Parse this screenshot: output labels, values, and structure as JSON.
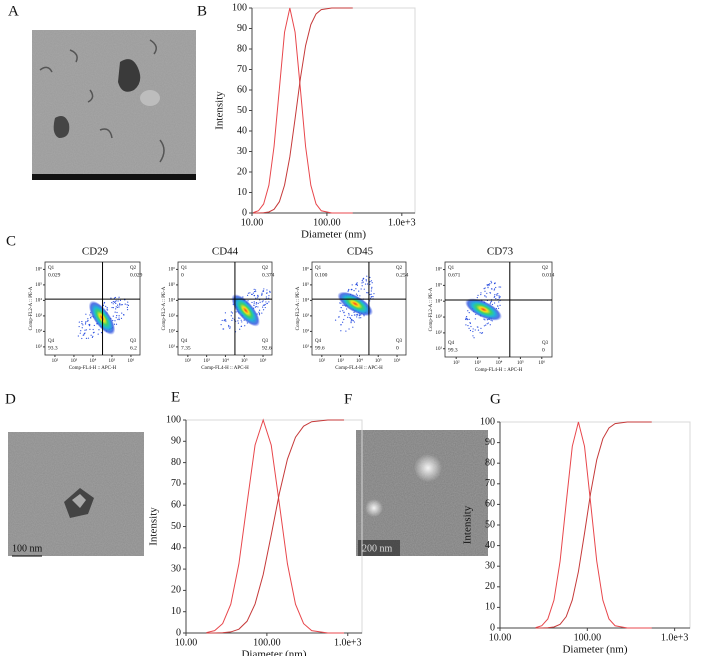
{
  "panel_labels": [
    "A",
    "B",
    "C",
    "D",
    "E",
    "F",
    "G"
  ],
  "images": {
    "D": {
      "scale_bar": "100 nm"
    },
    "F": {
      "scale_bar": "200 nm"
    }
  },
  "chart_data": [
    {
      "type": "line",
      "x_label": "Diameter (nm)",
      "y_label": "Intensity",
      "log_x": true,
      "xlim": [
        10,
        1500
      ],
      "xticks": [
        {
          "value": 10,
          "label": "10.00"
        },
        {
          "value": 100,
          "label": "100.00"
        },
        {
          "value": 1000,
          "label": "1.0e+3"
        }
      ],
      "ylim": [
        0,
        100
      ],
      "yticks": [
        0,
        10,
        20,
        30,
        40,
        50,
        60,
        70,
        80,
        90,
        100
      ],
      "x": [
        10.4,
        12.2,
        14.3,
        16.8,
        19.7,
        23.2,
        27.2,
        32.0,
        37.6,
        44.2,
        51.9,
        61.0,
        71.6,
        84.1,
        116.1,
        160.3,
        221.3
      ],
      "series": [
        {
          "color": "#e8474c",
          "values": [
            0.2,
            1.1,
            4.4,
            13.5,
            32.5,
            60.7,
            88.2,
            100,
            88.2,
            60.7,
            32.5,
            13.5,
            4.4,
            1.1,
            0,
            0,
            0
          ]
        },
        {
          "color": "#c63a3a",
          "values": [
            0,
            0,
            0.1,
            0.5,
            1.8,
            5.5,
            13.6,
            27.4,
            46.0,
            65.5,
            81.6,
            91.9,
            97.1,
            99.2,
            100,
            100,
            100
          ]
        }
      ]
    },
    {
      "type": "flow",
      "title": "CD29",
      "x_label": "Comp-FL4-H :: APC-H",
      "y_label": "Comp-FL2-A :: PE-A",
      "log_x": true,
      "log_y": true,
      "xlim": [
        30,
        3000000
      ],
      "xticks": [
        {
          "value": 100,
          "label": "10²"
        },
        {
          "value": 1000,
          "label": "10³"
        },
        {
          "value": 10000,
          "label": "10⁴"
        },
        {
          "value": 100000,
          "label": "10⁵"
        },
        {
          "value": 1000000,
          "label": "10⁶"
        }
      ],
      "ylim": [
        3,
        3000000
      ],
      "yticks": [
        {
          "value": 10,
          "label": "10¹"
        },
        {
          "value": 100,
          "label": "10²"
        },
        {
          "value": 1000,
          "label": "10³"
        },
        {
          "value": 10000,
          "label": "10⁴"
        },
        {
          "value": 100000,
          "label": "10⁵"
        },
        {
          "value": 1000000,
          "label": "10⁶"
        }
      ],
      "gate": [
        32000,
        12000
      ],
      "quadrants": [
        "Q1",
        "Q2",
        "Q3",
        "Q4"
      ],
      "values": [
        0.029,
        0.029,
        6.2,
        93.3
      ],
      "value_labels": [
        "0.029",
        "0.029",
        "6.2",
        "93.3"
      ]
    },
    {
      "type": "flow",
      "title": "CD44",
      "x_label": "Comp-FL4-H :: APC-H",
      "y_label": "Comp-FL2-A :: PE-A",
      "log_x": true,
      "log_y": true,
      "xlim": [
        30,
        3000000
      ],
      "xticks": [
        {
          "value": 100,
          "label": "10²"
        },
        {
          "value": 1000,
          "label": "10³"
        },
        {
          "value": 10000,
          "label": "10⁴"
        },
        {
          "value": 100000,
          "label": "10⁵"
        },
        {
          "value": 1000000,
          "label": "10⁶"
        }
      ],
      "ylim": [
        3,
        3000000
      ],
      "yticks": [
        {
          "value": 10,
          "label": "10¹"
        },
        {
          "value": 100,
          "label": "10²"
        },
        {
          "value": 1000,
          "label": "10³"
        },
        {
          "value": 10000,
          "label": "10⁴"
        },
        {
          "value": 100000,
          "label": "10⁵"
        },
        {
          "value": 1000000,
          "label": "10⁶"
        }
      ],
      "gate": [
        32000,
        12000
      ],
      "quadrants": [
        "Q1",
        "Q2",
        "Q3",
        "Q4"
      ],
      "values": [
        0,
        0.374,
        92.6,
        7.35
      ],
      "value_labels": [
        "0",
        "0.374",
        "92.6",
        "7.35"
      ]
    },
    {
      "type": "flow",
      "title": "CD45",
      "x_label": "Comp-FL4-H :: APC-H",
      "y_label": "Comp-FL2-A :: PE-A",
      "log_x": true,
      "log_y": true,
      "xlim": [
        30,
        3000000
      ],
      "xticks": [
        {
          "value": 100,
          "label": "10²"
        },
        {
          "value": 1000,
          "label": "10³"
        },
        {
          "value": 10000,
          "label": "10⁴"
        },
        {
          "value": 100000,
          "label": "10⁵"
        },
        {
          "value": 1000000,
          "label": "10⁶"
        }
      ],
      "ylim": [
        3,
        3000000
      ],
      "yticks": [
        {
          "value": 10,
          "label": "10¹"
        },
        {
          "value": 100,
          "label": "10²"
        },
        {
          "value": 1000,
          "label": "10³"
        },
        {
          "value": 10000,
          "label": "10⁴"
        },
        {
          "value": 100000,
          "label": "10⁵"
        },
        {
          "value": 1000000,
          "label": "10⁶"
        }
      ],
      "gate": [
        32000,
        12000
      ],
      "quadrants": [
        "Q1",
        "Q2",
        "Q3",
        "Q4"
      ],
      "values": [
        0.1,
        0.254,
        0,
        99.6
      ],
      "value_labels": [
        "0.100",
        "0.254",
        "0",
        "99.6"
      ]
    },
    {
      "type": "flow",
      "title": "CD73",
      "x_label": "Comp-FL4-H :: APC-H",
      "y_label": "Comp-FL2-A :: PE-A",
      "log_x": true,
      "log_y": true,
      "xlim": [
        30,
        3000000
      ],
      "xticks": [
        {
          "value": 100,
          "label": "10²"
        },
        {
          "value": 1000,
          "label": "10³"
        },
        {
          "value": 10000,
          "label": "10⁴"
        },
        {
          "value": 100000,
          "label": "10⁵"
        },
        {
          "value": 1000000,
          "label": "10⁶"
        }
      ],
      "ylim": [
        3,
        3000000
      ],
      "yticks": [
        {
          "value": 10,
          "label": "10¹"
        },
        {
          "value": 100,
          "label": "10²"
        },
        {
          "value": 1000,
          "label": "10³"
        },
        {
          "value": 10000,
          "label": "10⁴"
        },
        {
          "value": 100000,
          "label": "10⁵"
        },
        {
          "value": 1000000,
          "label": "10⁶"
        }
      ],
      "gate": [
        32000,
        12000
      ],
      "quadrants": [
        "Q1",
        "Q2",
        "Q3",
        "Q4"
      ],
      "values": [
        0.671,
        0.014,
        0,
        99.3
      ],
      "value_labels": [
        "0.671",
        "0.014",
        "0",
        "99.3"
      ]
    },
    {
      "type": "line",
      "x_label": "Diameter (nm)",
      "y_label": "Intensity",
      "log_x": true,
      "xlim": [
        10,
        1500
      ],
      "xticks": [
        {
          "value": 10,
          "label": "10.00"
        },
        {
          "value": 100,
          "label": "100.00"
        },
        {
          "value": 1000,
          "label": "1.0e+3"
        }
      ],
      "ylim": [
        0,
        100
      ],
      "yticks": [
        0,
        10,
        20,
        30,
        40,
        50,
        60,
        70,
        80,
        90,
        100
      ],
      "x": [
        17.9,
        22.6,
        28.4,
        35.8,
        45.1,
        56.8,
        71.4,
        90,
        113.2,
        142.6,
        179.5,
        225.9,
        284.4,
        358.1,
        567.5,
        899.5
      ],
      "series": [
        {
          "color": "#e8474c",
          "values": [
            0.2,
            1.1,
            4.4,
            13.5,
            32.5,
            60.7,
            88.2,
            100,
            88.2,
            60.7,
            32.5,
            13.5,
            4.4,
            1.1,
            0,
            0
          ]
        },
        {
          "color": "#c63a3a",
          "values": [
            0,
            0,
            0.1,
            0.5,
            1.8,
            5.5,
            13.6,
            27.4,
            46.0,
            65.5,
            81.6,
            91.9,
            97.1,
            99.2,
            100,
            100
          ]
        }
      ]
    },
    {
      "type": "line",
      "x_label": "Diameter (nm)",
      "y_label": "Intensity",
      "log_x": true,
      "xlim": [
        10,
        1500
      ],
      "xticks": [
        {
          "value": 10,
          "label": "10.00"
        },
        {
          "value": 100,
          "label": "100.00"
        },
        {
          "value": 1000,
          "label": "1.0e+3"
        }
      ],
      "ylim": [
        0,
        100
      ],
      "yticks": [
        0,
        10,
        20,
        30,
        40,
        50,
        60,
        70,
        80,
        90,
        100
      ],
      "x": [
        25.6,
        30.1,
        35.3,
        41.5,
        48.8,
        57.3,
        67.3,
        79.1,
        92.9,
        109.1,
        128.2,
        150.7,
        177.0,
        208.0,
        287.1,
        396.3,
        547.0
      ],
      "series": [
        {
          "color": "#e8474c",
          "values": [
            0.2,
            1.1,
            4.4,
            13.5,
            32.5,
            60.7,
            88.2,
            100,
            88.2,
            60.7,
            32.5,
            13.5,
            4.4,
            1.1,
            0,
            0,
            0
          ]
        },
        {
          "color": "#c63a3a",
          "values": [
            0,
            0,
            0.1,
            0.5,
            1.8,
            5.5,
            13.6,
            27.4,
            46.0,
            65.5,
            81.6,
            91.9,
            97.1,
            99.2,
            100,
            100,
            100
          ]
        }
      ]
    }
  ]
}
